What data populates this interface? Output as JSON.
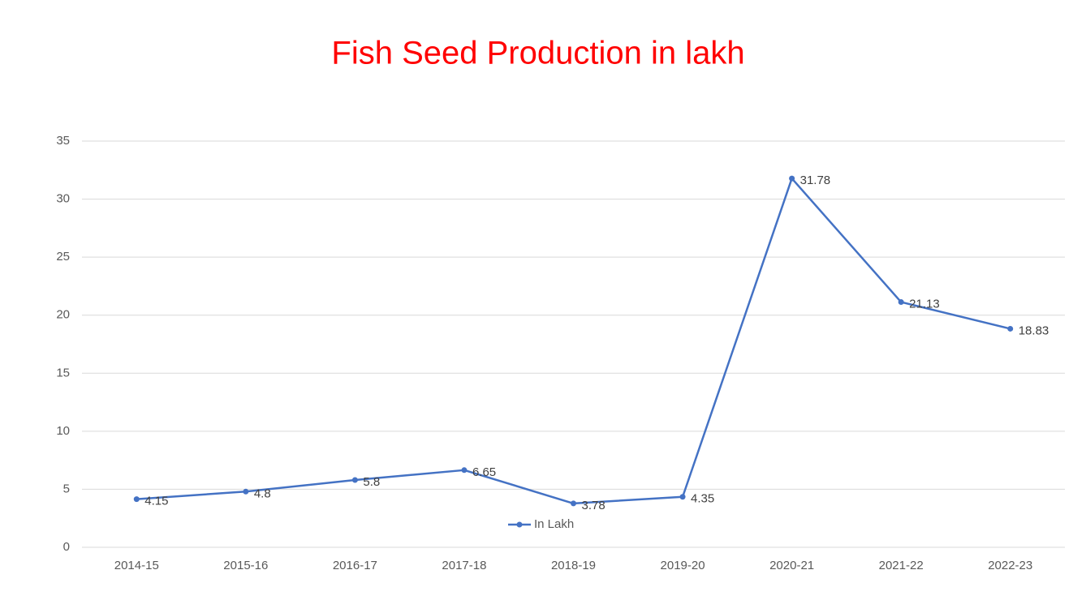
{
  "chart_data": {
    "type": "line",
    "title": "Fish Seed Production in lakh",
    "categories": [
      "2014-15",
      "2015-16",
      "2016-17",
      "2017-18",
      "2018-19",
      "2019-20",
      "2020-21",
      "2021-22",
      "2022-23"
    ],
    "series": [
      {
        "name": "In Lakh",
        "color": "#4472c4",
        "values": [
          4.15,
          4.8,
          5.8,
          6.65,
          3.78,
          4.35,
          31.78,
          21.13,
          18.83
        ]
      }
    ],
    "ylim": [
      0,
      35
    ],
    "yticks": [
      0,
      5,
      10,
      15,
      20,
      25,
      30,
      35
    ],
    "grid": true,
    "legend": "bottom",
    "title_color": "#ff0000"
  }
}
